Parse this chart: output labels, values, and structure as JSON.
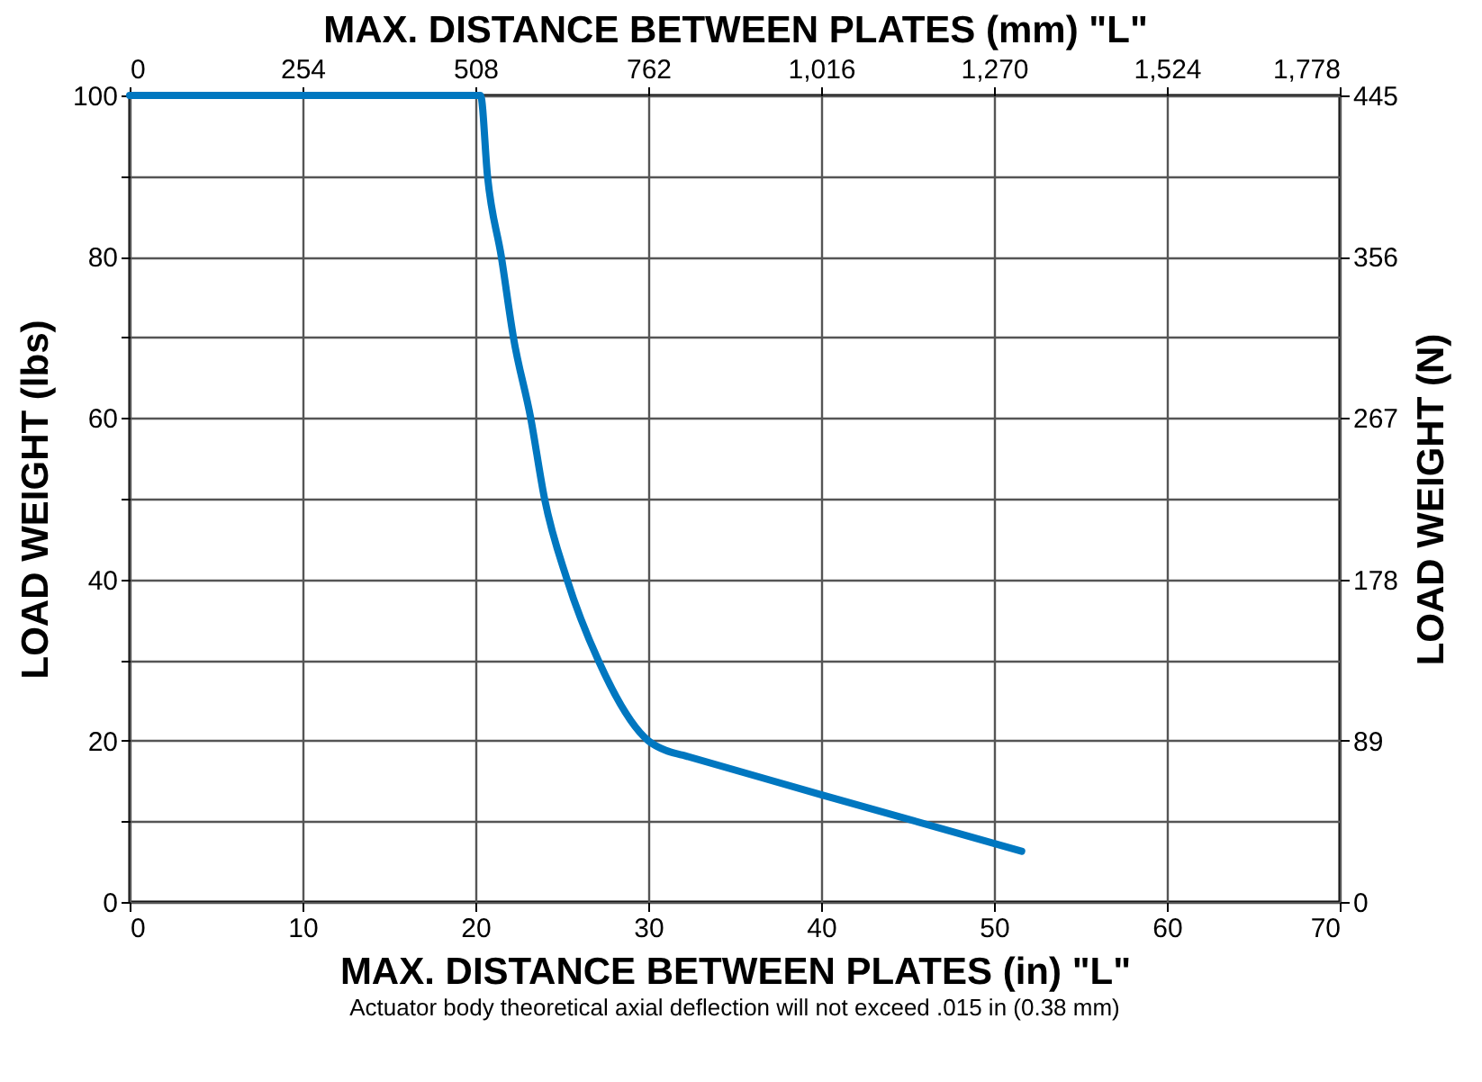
{
  "chart_data": {
    "type": "line",
    "xlabel": "MAX. DISTANCE BETWEEN PLATES (in) \"L\"",
    "x2label": "MAX. DISTANCE BETWEEN PLATES (mm) \"L\"",
    "ylabel": "LOAD WEIGHT (lbs)",
    "y2label": "LOAD WEIGHT (N)",
    "annotations": [
      "Actuator body theoretical axial deflection will not exceed .015 in (0.38 mm)"
    ],
    "x": [
      0,
      20.3,
      20.7,
      21.5,
      22.2,
      23.2,
      24,
      25.3,
      27.1,
      30,
      31,
      32,
      40,
      51.6
    ],
    "series": [
      {
        "color": "#0077c0",
        "values": [
          100,
          100,
          90,
          80,
          70,
          60,
          50,
          40,
          30,
          20,
          18.8,
          18.2,
          13.3,
          6.3
        ]
      }
    ],
    "xlim": [
      0,
      70
    ],
    "xticks": [
      0,
      10,
      20,
      30,
      40,
      50,
      60,
      70
    ],
    "ylim": [
      0,
      100
    ],
    "yticks": [
      0,
      {
        "value": 10,
        "label": null
      },
      20,
      {
        "value": 30,
        "label": null
      },
      40,
      {
        "value": 50,
        "label": null
      },
      60,
      {
        "value": 70,
        "label": null
      },
      80,
      {
        "value": 90,
        "label": null
      },
      100
    ],
    "x2lim": [
      0,
      1778
    ],
    "x2ticks": [
      0,
      {
        "value": 254,
        "label": "254"
      },
      {
        "value": 508,
        "label": "508"
      },
      {
        "value": 762,
        "label": "762"
      },
      {
        "value": 1016,
        "label": "1,016"
      },
      {
        "value": 1270,
        "label": "1,270"
      },
      {
        "value": 1524,
        "label": "1,524"
      },
      {
        "value": 1778,
        "label": "1,778"
      }
    ],
    "y2lim": [
      0,
      445
    ],
    "y2ticks": [
      0,
      89,
      178,
      267,
      356,
      445
    ],
    "grid": true,
    "line_style": "solid",
    "marker": "none"
  }
}
